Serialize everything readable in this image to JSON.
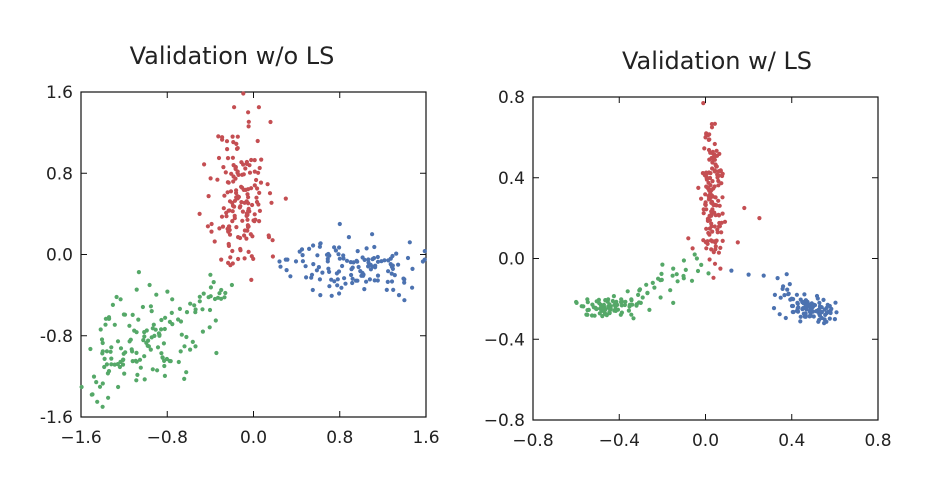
{
  "figure": {
    "panels": 2
  },
  "chart_data": [
    {
      "type": "scatter",
      "title": "Validation w/o LS",
      "xlabel": "",
      "ylabel": "",
      "xlim": [
        -1.6,
        1.6
      ],
      "ylim": [
        -1.6,
        1.6
      ],
      "xticks": [
        -1.6,
        -0.8,
        0.0,
        0.8,
        1.6
      ],
      "yticks": [
        -1.6,
        -0.8,
        0.0,
        0.8,
        1.6
      ],
      "xtick_labels": [
        "−1.6",
        "−0.8",
        "0.0",
        "0.8",
        "1.6"
      ],
      "ytick_labels": [
        "-1.6",
        "-0.8",
        "0.0",
        "0.8",
        "1.6"
      ],
      "grid": false,
      "series": [
        {
          "name": "red cluster",
          "color": "#c44e52",
          "seed": 11,
          "count": 160,
          "blobs": [
            {
              "cx": -0.12,
              "cy": 0.55,
              "sx": 0.12,
              "sy": 0.38,
              "w": 1.0
            }
          ],
          "extra": [
            [
              -0.18,
              1.45
            ],
            [
              -0.05,
              1.4
            ],
            [
              0.05,
              1.45
            ],
            [
              -0.5,
              0.4
            ],
            [
              -0.32,
              0.95
            ],
            [
              0.3,
              0.55
            ],
            [
              -0.3,
              -0.05
            ],
            [
              0.18,
              -0.02
            ]
          ]
        },
        {
          "name": "green cluster",
          "color": "#55a868",
          "seed": 23,
          "count": 150,
          "blobs": [
            {
              "cx": -1.05,
              "cy": -0.85,
              "sx": 0.28,
              "sy": 0.22,
              "w": 1.0
            }
          ],
          "line": {
            "x0": -1.55,
            "y0": -1.35,
            "x1": -0.25,
            "y1": -0.25
          },
          "extra": [
            [
              -1.45,
              -1.45
            ],
            [
              -1.5,
              -1.38
            ],
            [
              -1.4,
              -1.5
            ],
            [
              -0.4,
              -0.2
            ],
            [
              -0.3,
              -0.35
            ],
            [
              -0.2,
              -0.3
            ],
            [
              -0.55,
              -0.5
            ],
            [
              -0.35,
              -0.65
            ]
          ]
        },
        {
          "name": "blue cluster",
          "color": "#4c72b0",
          "seed": 37,
          "count": 120,
          "blobs": [
            {
              "cx": 0.95,
              "cy": -0.12,
              "sx": 0.3,
              "sy": 0.12,
              "w": 1.0
            }
          ],
          "extra": [
            [
              0.3,
              -0.05
            ],
            [
              0.25,
              -0.12
            ],
            [
              0.45,
              0.05
            ],
            [
              0.55,
              -0.35
            ],
            [
              0.62,
              -0.4
            ],
            [
              1.35,
              -0.4
            ],
            [
              1.4,
              -0.45
            ],
            [
              1.45,
              0.12
            ],
            [
              0.8,
              0.3
            ],
            [
              1.1,
              0.2
            ]
          ]
        }
      ]
    },
    {
      "type": "scatter",
      "title": "Validation w/ LS",
      "xlabel": "",
      "ylabel": "",
      "xlim": [
        -0.8,
        0.8
      ],
      "ylim": [
        -0.8,
        0.8
      ],
      "xticks": [
        -0.8,
        -0.4,
        0.0,
        0.4,
        0.8
      ],
      "yticks": [
        -0.8,
        -0.4,
        0.0,
        0.4,
        0.8
      ],
      "xtick_labels": [
        "−0.8",
        "−0.4",
        "0.0",
        "0.4",
        "0.8"
      ],
      "ytick_labels": [
        "−0.8",
        "−0.4",
        "0.0",
        "0.4",
        "0.8"
      ],
      "grid": false,
      "series": [
        {
          "name": "red cluster",
          "color": "#c44e52",
          "seed": 51,
          "count": 150,
          "blobs": [
            {
              "cx": 0.03,
              "cy": 0.3,
              "sx": 0.025,
              "sy": 0.17,
              "w": 1.0
            }
          ],
          "extra": [
            [
              -0.01,
              0.77
            ],
            [
              0.0,
              0.6
            ],
            [
              0.03,
              0.65
            ],
            [
              0.25,
              0.2
            ],
            [
              0.18,
              0.25
            ],
            [
              0.15,
              0.08
            ],
            [
              -0.08,
              0.1
            ],
            [
              -0.06,
              0.05
            ]
          ]
        },
        {
          "name": "green cluster",
          "color": "#55a868",
          "seed": 63,
          "count": 110,
          "blobs": [
            {
              "cx": -0.47,
              "cy": -0.24,
              "sx": 0.05,
              "sy": 0.025,
              "w": 1.0
            }
          ],
          "line": {
            "x0": -0.4,
            "y0": -0.25,
            "x1": 0.0,
            "y1": -0.02
          },
          "extra": [
            [
              -0.22,
              -0.1
            ],
            [
              -0.2,
              -0.03
            ],
            [
              -0.15,
              -0.05
            ],
            [
              -0.1,
              -0.01
            ],
            [
              -0.05,
              0.02
            ],
            [
              -0.04,
              0.0
            ],
            [
              -0.15,
              -0.22
            ],
            [
              -0.3,
              -0.22
            ]
          ]
        },
        {
          "name": "blue cluster",
          "color": "#4c72b0",
          "seed": 79,
          "count": 110,
          "blobs": [
            {
              "cx": 0.5,
              "cy": -0.25,
              "sx": 0.05,
              "sy": 0.025,
              "w": 1.0
            }
          ],
          "line": {
            "x0": 0.3,
            "y0": -0.15,
            "x1": 0.55,
            "y1": -0.27
          },
          "extra": [
            [
              0.12,
              -0.06
            ],
            [
              0.2,
              -0.08
            ],
            [
              0.6,
              -0.3
            ],
            [
              0.58,
              -0.27
            ],
            [
              0.55,
              -0.32
            ]
          ]
        }
      ]
    }
  ]
}
